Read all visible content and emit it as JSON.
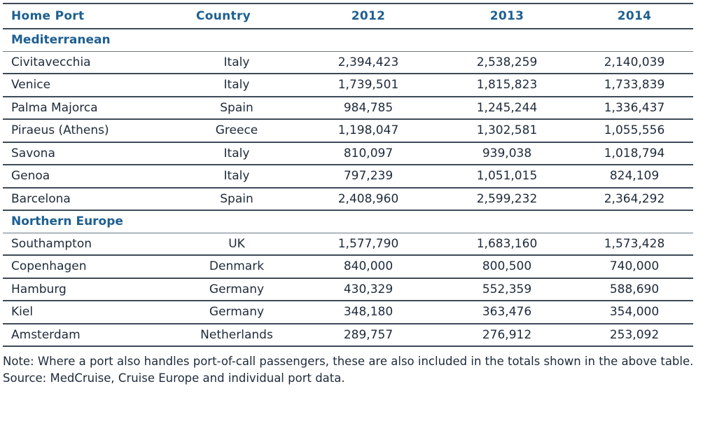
{
  "table": {
    "headers": [
      "Home Port",
      "Country",
      "2012",
      "2013",
      "2014"
    ],
    "sections": [
      {
        "name": "Mediterranean",
        "rows": [
          [
            "Civitavecchia",
            "Italy",
            "2,394,423",
            "2,538,259",
            "2,140,039"
          ],
          [
            "Venice",
            "Italy",
            "1,739,501",
            "1,815,823",
            "1,733,839"
          ],
          [
            "Palma Majorca",
            "Spain",
            "984,785",
            "1,245,244",
            "1,336,437"
          ],
          [
            "Piraeus (Athens)",
            "Greece",
            "1,198,047",
            "1,302,581",
            "1,055,556"
          ],
          [
            "Savona",
            "Italy",
            "810,097",
            "939,038",
            "1,018,794"
          ],
          [
            "Genoa",
            "Italy",
            "797,239",
            "1,051,015",
            "824,109"
          ],
          [
            "Barcelona",
            "Spain",
            "2,408,960",
            "2,599,232",
            "2,364,292"
          ]
        ]
      },
      {
        "name": "Northern Europe",
        "rows": [
          [
            "Southampton",
            "UK",
            "1,577,790",
            "1,683,160",
            "1,573,428"
          ],
          [
            "Copenhagen",
            "Denmark",
            "840,000",
            "800,500",
            "740,000"
          ],
          [
            "Hamburg",
            "Germany",
            "430,329",
            "552,359",
            "588,690"
          ],
          [
            "Kiel",
            "Germany",
            "348,180",
            "363,476",
            "354,000"
          ],
          [
            "Amsterdam",
            "Netherlands",
            "289,757",
            "276,912",
            "253,092"
          ]
        ]
      }
    ]
  },
  "notes": {
    "note": "Note: Where a port also handles port-of-call passengers, these are also included in the totals shown in the above table.",
    "source": "Source: MedCruise, Cruise Europe and individual port data."
  },
  "colors": {
    "heading_blue": "#1d5f91",
    "text": "#1e2a3a",
    "rule": "#3d4a57"
  }
}
